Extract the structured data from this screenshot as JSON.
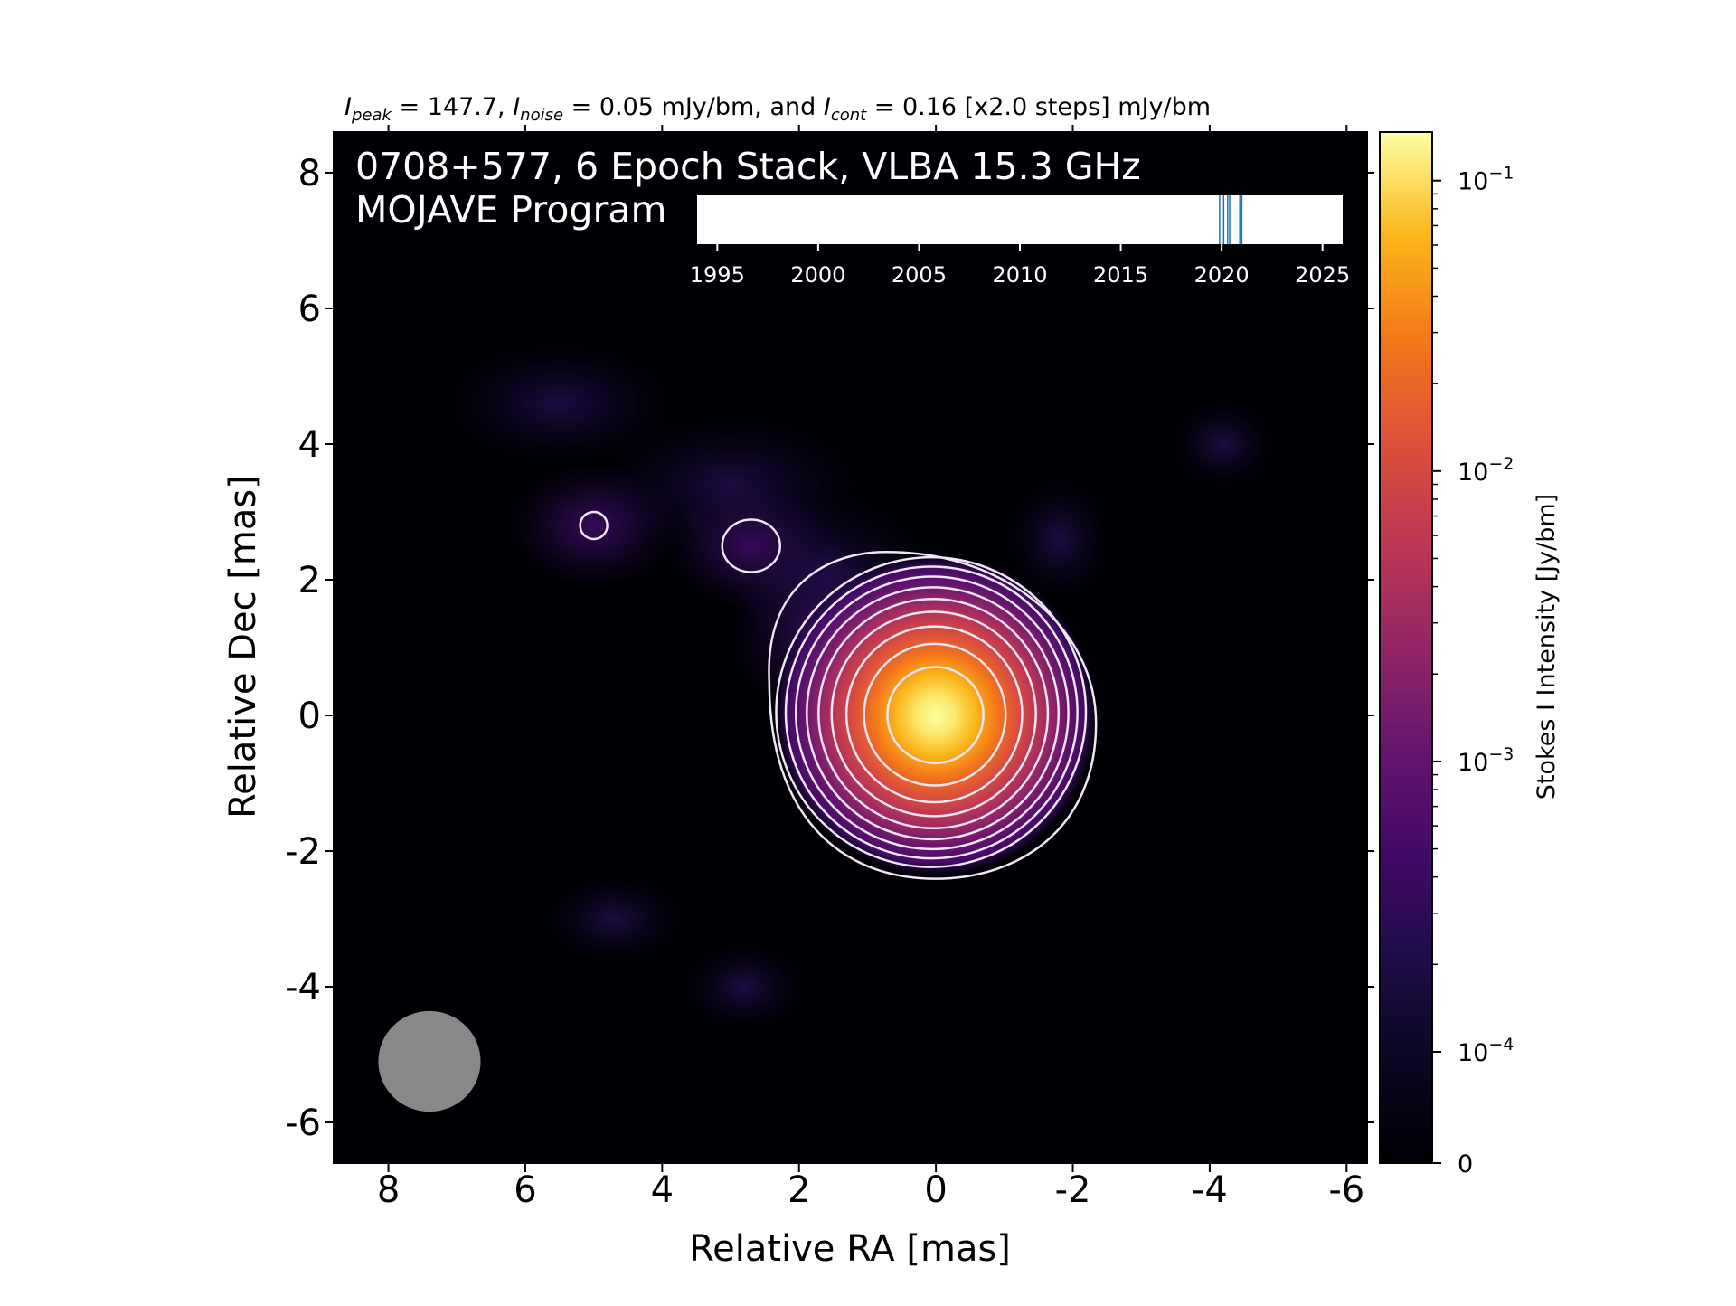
{
  "header": {
    "peak_label": "I",
    "peak_sub": "peak",
    "peak_value": " = 147.7, ",
    "noise_label": "I",
    "noise_sub": "noise",
    "noise_value": " = 0.05 mJy/bm, and ",
    "cont_label": "I",
    "cont_sub": "cont",
    "cont_value": " = 0.16 [x2.0 steps] mJy/bm"
  },
  "overlay": {
    "line1": "0708+577, 6 Epoch Stack, VLBA 15.3 GHz",
    "line2": "MOJAVE Program"
  },
  "chart_data": [
    {
      "type": "heatmap",
      "title": "",
      "xlabel": "Relative RA [mas]",
      "ylabel": "Relative Dec [mas]",
      "xlim": [
        8.8,
        -6.3
      ],
      "ylim": [
        -6.6,
        8.6
      ],
      "x_ticks": [
        8,
        6,
        4,
        2,
        0,
        -2,
        -4,
        -6
      ],
      "x_tick_labels": [
        "8",
        "6",
        "4",
        "2",
        "0",
        "-2",
        "-4",
        "-6"
      ],
      "y_ticks": [
        8,
        6,
        4,
        2,
        0,
        -2,
        -4,
        -6
      ],
      "y_tick_labels": [
        "8",
        "6",
        "4",
        "2",
        "0",
        "-2",
        "-4",
        "-6"
      ],
      "colormap": "inferno",
      "background_color": "#000004",
      "peak_position": [
        0,
        0
      ],
      "peak_intensity_mJy_per_bm": 147.7,
      "noise_mJy_per_bm": 0.05,
      "lowest_contour_mJy_per_bm": 0.16,
      "contour_step_factor": 2.0,
      "contour_color": "#f0e6f5",
      "contour_levels_mJy_per_bm": [
        0.16,
        0.32,
        0.64,
        1.28,
        2.56,
        5.12,
        10.24,
        20.48,
        40.96,
        81.92
      ],
      "core_fwhm_mas": 1.3,
      "jet_features": [
        {
          "ra": 2.7,
          "dec": 2.5
        },
        {
          "ra": 5.0,
          "dec": 2.8
        }
      ],
      "beam": {
        "ra": 7.4,
        "dec": -5.1,
        "major_mas": 1.4,
        "minor_mas": 1.3,
        "color": "#888888"
      }
    },
    {
      "type": "colorbar",
      "label": "Stokes I Intensity [Jy/bm]",
      "scale": "log",
      "range": [
        0,
        0.147
      ],
      "tick_values": [
        0,
        0.0001,
        0.001,
        0.01,
        0.1
      ],
      "tick_labels": [
        {
          "base": "0",
          "exp": ""
        },
        {
          "base": "10",
          "exp": "−4"
        },
        {
          "base": "10",
          "exp": "−3"
        },
        {
          "base": "10",
          "exp": "−2"
        },
        {
          "base": "10",
          "exp": "−1"
        }
      ],
      "colormap": "inferno"
    },
    {
      "type": "timeline",
      "xlim": [
        1994,
        2026
      ],
      "x_ticks": [
        1995,
        2000,
        2005,
        2010,
        2015,
        2020,
        2025
      ],
      "x_tick_labels": [
        "1995",
        "2000",
        "2005",
        "2010",
        "2015",
        "2020",
        "2025"
      ],
      "epochs": [
        2019.9,
        2020.1,
        2020.3,
        2020.4,
        2020.9,
        2021.0
      ],
      "epoch_color": "#1f77b4",
      "background": "#ffffff"
    }
  ]
}
